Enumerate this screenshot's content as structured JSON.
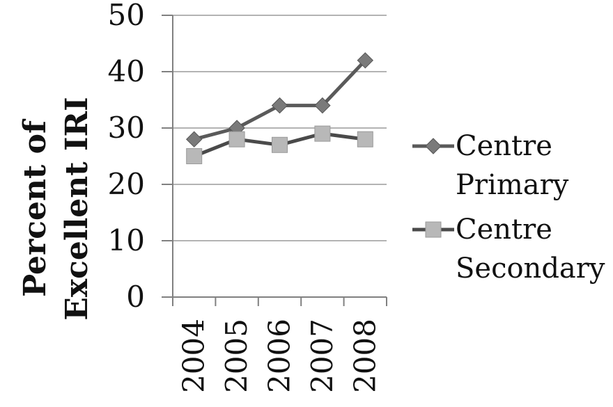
{
  "chart_data": {
    "type": "line",
    "categories": [
      "2004",
      "2005",
      "2006",
      "2007",
      "2008"
    ],
    "series": [
      {
        "name": "Centre Primary",
        "name_lines": [
          "Centre",
          "Primary"
        ],
        "values": [
          28,
          30,
          34,
          34,
          42
        ],
        "color": "#5a5a5a",
        "marker": "diamond",
        "marker_color": "#7a7a7a"
      },
      {
        "name": "Centre Secondary",
        "name_lines": [
          "Centre",
          "Secondary"
        ],
        "values": [
          25,
          28,
          27,
          29,
          28
        ],
        "color": "#4a4a4a",
        "marker": "square",
        "marker_color": "#b8b8b8"
      }
    ],
    "ylabel": "Percent of Excellent IRI",
    "ylabel_lines": [
      "Percent of",
      "Excellent IRI"
    ],
    "xlabel": "",
    "ylim": [
      0,
      50
    ],
    "yticks": [
      "0",
      "10",
      "20",
      "30",
      "40",
      "50"
    ],
    "grid": true,
    "legend_position": "right"
  }
}
